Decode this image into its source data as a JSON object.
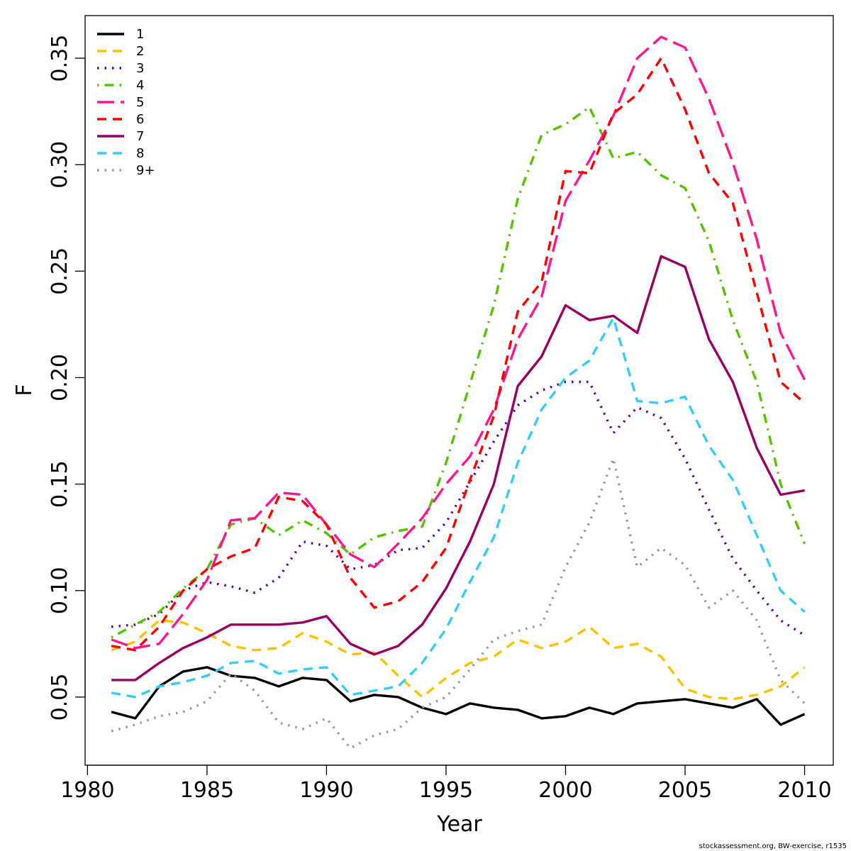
{
  "chart_data": {
    "type": "line",
    "xlabel": "Year",
    "ylabel": "F",
    "xlim": [
      1979.9,
      2011.2
    ],
    "ylim": [
      0.018,
      0.37
    ],
    "xticks": [
      1980,
      1985,
      1990,
      1995,
      2000,
      2005,
      2010
    ],
    "yticks": [
      0.05,
      0.1,
      0.15,
      0.2,
      0.25,
      0.3,
      0.35
    ],
    "ytick_labels": [
      "0.05",
      "0.10",
      "0.15",
      "0.20",
      "0.25",
      "0.30",
      "0.35"
    ],
    "legend_position": "top-left",
    "grid": false,
    "x": [
      1981,
      1982,
      1983,
      1984,
      1985,
      1986,
      1987,
      1988,
      1989,
      1990,
      1991,
      1992,
      1993,
      1994,
      1995,
      1996,
      1997,
      1998,
      1999,
      2000,
      2001,
      2002,
      2003,
      2004,
      2005,
      2006,
      2007,
      2008,
      2009,
      2010
    ],
    "series": [
      {
        "name": "1",
        "color": "#000000",
        "dash": "solid",
        "values": [
          0.043,
          0.04,
          0.055,
          0.062,
          0.064,
          0.06,
          0.059,
          0.055,
          0.059,
          0.058,
          0.048,
          0.051,
          0.05,
          0.045,
          0.042,
          0.047,
          0.045,
          0.044,
          0.04,
          0.041,
          0.045,
          0.042,
          0.047,
          0.048,
          0.049,
          0.047,
          0.045,
          0.049,
          0.037,
          0.042
        ]
      },
      {
        "name": "2",
        "color": "#ffc000",
        "dash": "dashed",
        "values": [
          0.072,
          0.076,
          0.086,
          0.085,
          0.08,
          0.074,
          0.072,
          0.073,
          0.08,
          0.076,
          0.07,
          0.071,
          0.06,
          0.05,
          0.059,
          0.066,
          0.069,
          0.077,
          0.073,
          0.076,
          0.083,
          0.073,
          0.075,
          0.069,
          0.054,
          0.05,
          0.049,
          0.051,
          0.055,
          0.064
        ]
      },
      {
        "name": "3",
        "color": "#5c0096",
        "dash": "dotted",
        "values": [
          0.083,
          0.084,
          0.089,
          0.1,
          0.104,
          0.102,
          0.099,
          0.106,
          0.123,
          0.121,
          0.11,
          0.112,
          0.119,
          0.12,
          0.132,
          0.151,
          0.17,
          0.187,
          0.194,
          0.198,
          0.198,
          0.174,
          0.186,
          0.181,
          0.162,
          0.138,
          0.115,
          0.1,
          0.086,
          0.079
        ]
      },
      {
        "name": "4",
        "color": "#55c400",
        "dash": "dotdash",
        "values": [
          0.078,
          0.084,
          0.09,
          0.101,
          0.11,
          0.131,
          0.134,
          0.126,
          0.133,
          0.127,
          0.117,
          0.125,
          0.128,
          0.13,
          0.16,
          0.197,
          0.234,
          0.284,
          0.314,
          0.319,
          0.327,
          0.303,
          0.306,
          0.295,
          0.289,
          0.264,
          0.227,
          0.198,
          0.15,
          0.122
        ]
      },
      {
        "name": "5",
        "color": "#ff1493",
        "dash": "longdash",
        "values": [
          0.077,
          0.073,
          0.075,
          0.089,
          0.105,
          0.133,
          0.134,
          0.146,
          0.145,
          0.131,
          0.117,
          0.111,
          0.122,
          0.134,
          0.15,
          0.163,
          0.185,
          0.218,
          0.238,
          0.283,
          0.302,
          0.323,
          0.35,
          0.36,
          0.355,
          0.331,
          0.301,
          0.265,
          0.221,
          0.199
        ]
      },
      {
        "name": "6",
        "color": "#ff0000",
        "dash": "dashed",
        "values": [
          0.074,
          0.072,
          0.083,
          0.1,
          0.11,
          0.116,
          0.12,
          0.144,
          0.142,
          0.131,
          0.106,
          0.092,
          0.095,
          0.104,
          0.12,
          0.152,
          0.182,
          0.231,
          0.245,
          0.297,
          0.296,
          0.324,
          0.333,
          0.35,
          0.326,
          0.296,
          0.282,
          0.24,
          0.198,
          0.188
        ]
      },
      {
        "name": "7",
        "color": "#990066",
        "dash": "solid",
        "values": [
          0.058,
          0.058,
          0.066,
          0.073,
          0.078,
          0.084,
          0.084,
          0.084,
          0.085,
          0.088,
          0.075,
          0.07,
          0.074,
          0.084,
          0.101,
          0.123,
          0.15,
          0.196,
          0.21,
          0.234,
          0.227,
          0.229,
          0.221,
          0.257,
          0.252,
          0.218,
          0.198,
          0.167,
          0.145,
          0.147
        ]
      },
      {
        "name": "8",
        "color": "#33ccff",
        "dash": "dashed",
        "values": [
          0.052,
          0.05,
          0.055,
          0.057,
          0.06,
          0.066,
          0.067,
          0.061,
          0.063,
          0.064,
          0.051,
          0.053,
          0.055,
          0.066,
          0.082,
          0.104,
          0.125,
          0.16,
          0.185,
          0.2,
          0.208,
          0.228,
          0.189,
          0.188,
          0.191,
          0.168,
          0.152,
          0.126,
          0.1,
          0.09
        ]
      },
      {
        "name": "9+",
        "color": "#999999",
        "dash": "dotted",
        "values": [
          0.034,
          0.037,
          0.041,
          0.043,
          0.048,
          0.061,
          0.053,
          0.038,
          0.035,
          0.04,
          0.026,
          0.032,
          0.035,
          0.045,
          0.05,
          0.063,
          0.077,
          0.081,
          0.084,
          0.111,
          0.132,
          0.162,
          0.111,
          0.12,
          0.112,
          0.092,
          0.1,
          0.086,
          0.058,
          0.047
        ]
      }
    ]
  },
  "footnote": "stockassessment.org, BW-exercise, r1535"
}
